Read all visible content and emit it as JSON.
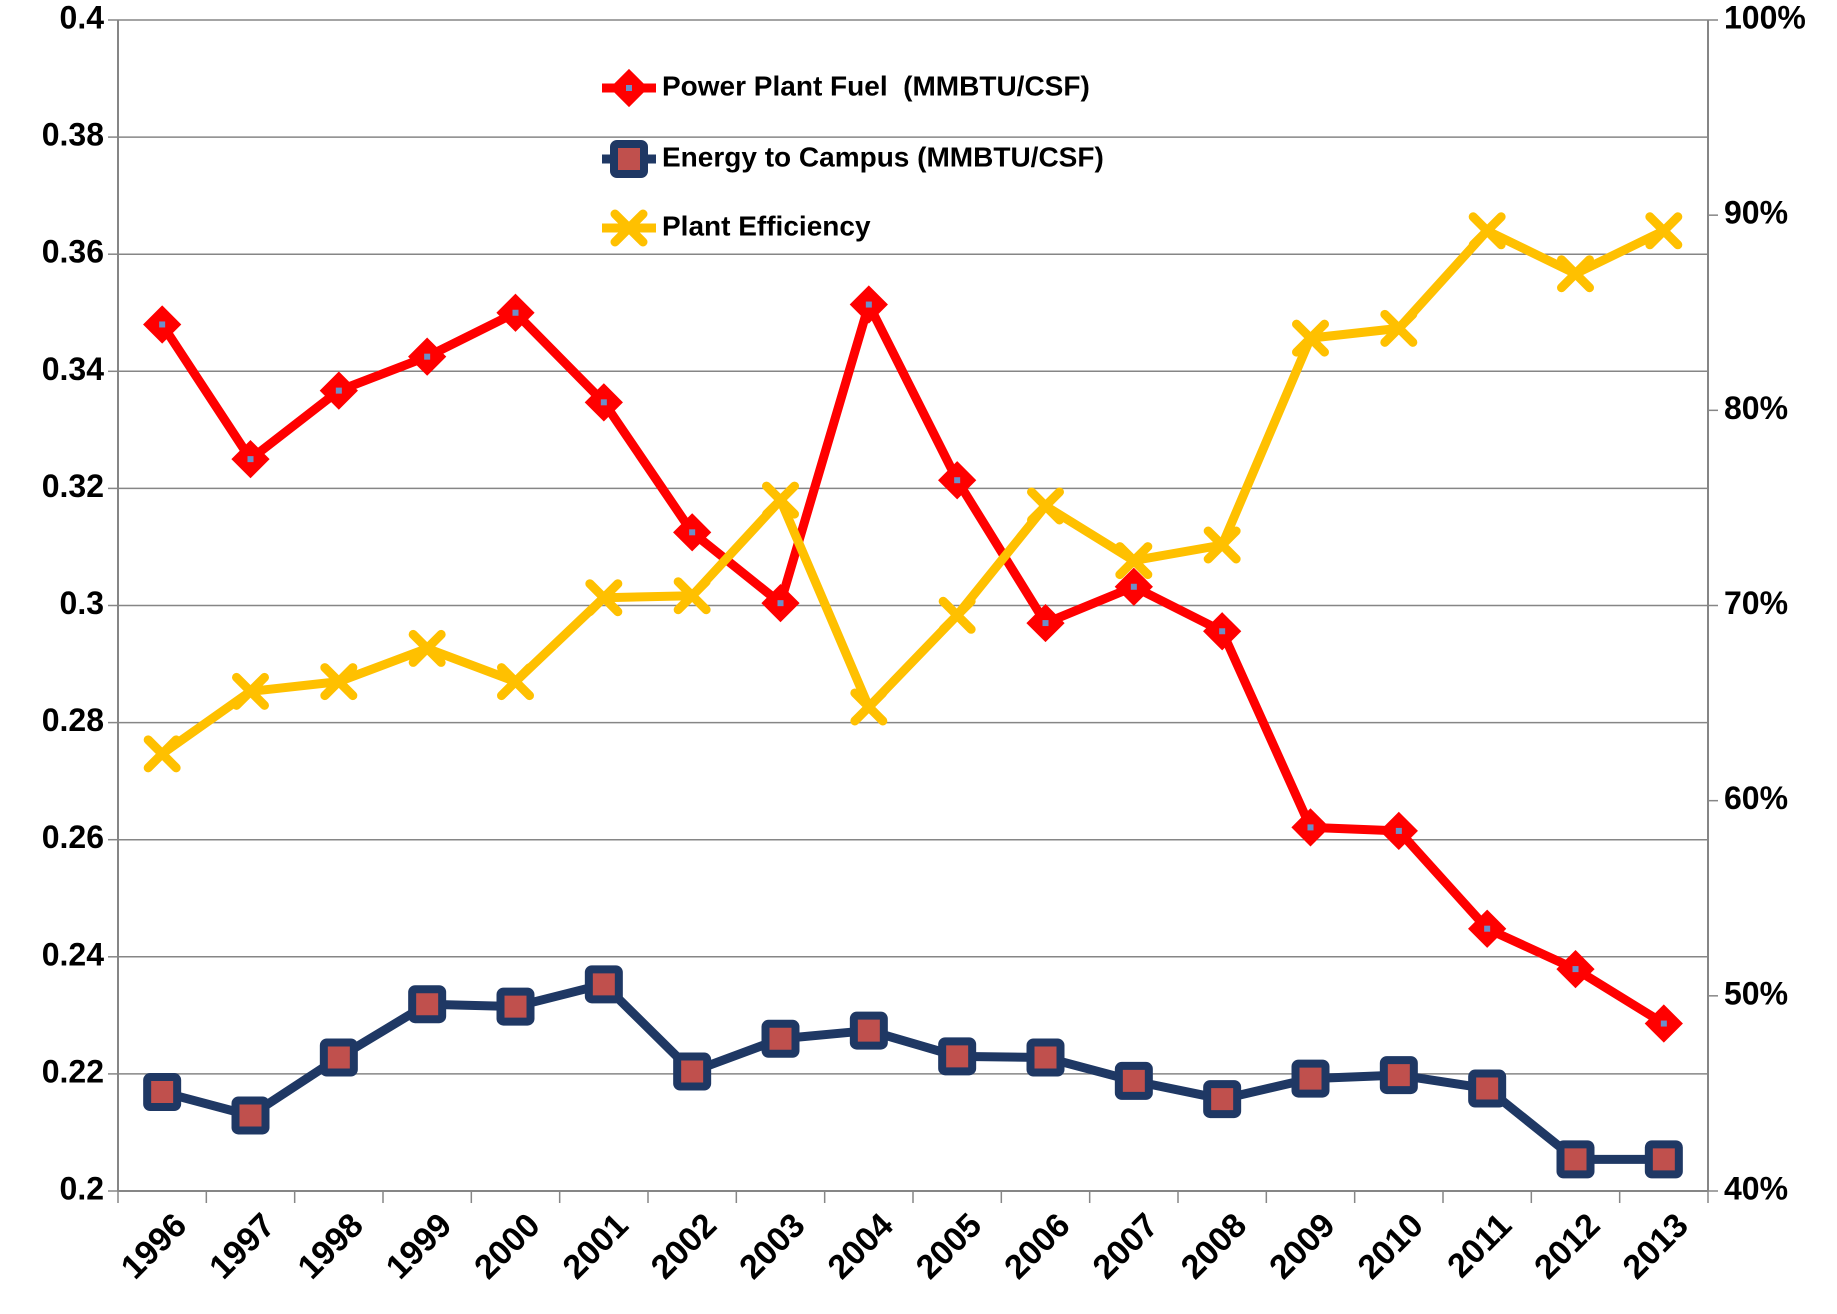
{
  "chart_data": {
    "type": "line",
    "categories": [
      "1996",
      "1997",
      "1998",
      "1999",
      "2000",
      "2001",
      "2002",
      "2003",
      "2004",
      "2005",
      "2006",
      "2007",
      "2008",
      "2009",
      "2010",
      "2011",
      "2012",
      "2013"
    ],
    "series": [
      {
        "name": "Power Plant Fuel  (MMBTU/CSF)",
        "color": "#ff0000",
        "marker": "diamond",
        "axis": "y",
        "values": [
          0.348,
          0.325,
          0.3367,
          0.3425,
          0.35,
          0.3347,
          0.3125,
          0.3004,
          0.3514,
          0.3214,
          0.297,
          0.3032,
          0.2956,
          0.2621,
          0.2615,
          0.2448,
          0.2379,
          0.2286
        ]
      },
      {
        "name": "Energy to Campus (MMBTU/CSF)",
        "color": "#1f3864",
        "marker": "square",
        "axis": "y",
        "values": [
          0.2169,
          0.2129,
          0.2228,
          0.2319,
          0.2315,
          0.2353,
          0.2204,
          0.226,
          0.2274,
          0.223,
          0.2228,
          0.2188,
          0.2157,
          0.2192,
          0.2198,
          0.2175,
          0.2054,
          0.2054
        ]
      },
      {
        "name": "Plant Efficiency",
        "color": "#ffc000",
        "marker": "x",
        "axis": "y2",
        "values": [
          62.4,
          65.6,
          66.1,
          67.8,
          66.1,
          70.4,
          70.5,
          75.4,
          64.8,
          69.5,
          75.1,
          72.3,
          73.1,
          83.7,
          84.2,
          89.2,
          87.0,
          89.2
        ]
      }
    ],
    "ylim": [
      0.2,
      0.4
    ],
    "yticks": [
      0.2,
      0.22,
      0.24,
      0.26,
      0.28,
      0.3,
      0.32,
      0.34,
      0.36,
      0.38,
      0.4
    ],
    "y2lim": [
      40,
      100
    ],
    "y2ticks": [
      {
        "value": 40,
        "label": "40%"
      },
      {
        "value": 50,
        "label": "50%"
      },
      {
        "value": 60,
        "label": "60%"
      },
      {
        "value": 70,
        "label": "70%"
      },
      {
        "value": 80,
        "label": "80%"
      },
      {
        "value": 90,
        "label": "90%"
      },
      {
        "value": 100,
        "label": "100%"
      }
    ],
    "grid": true,
    "legend": "top"
  }
}
